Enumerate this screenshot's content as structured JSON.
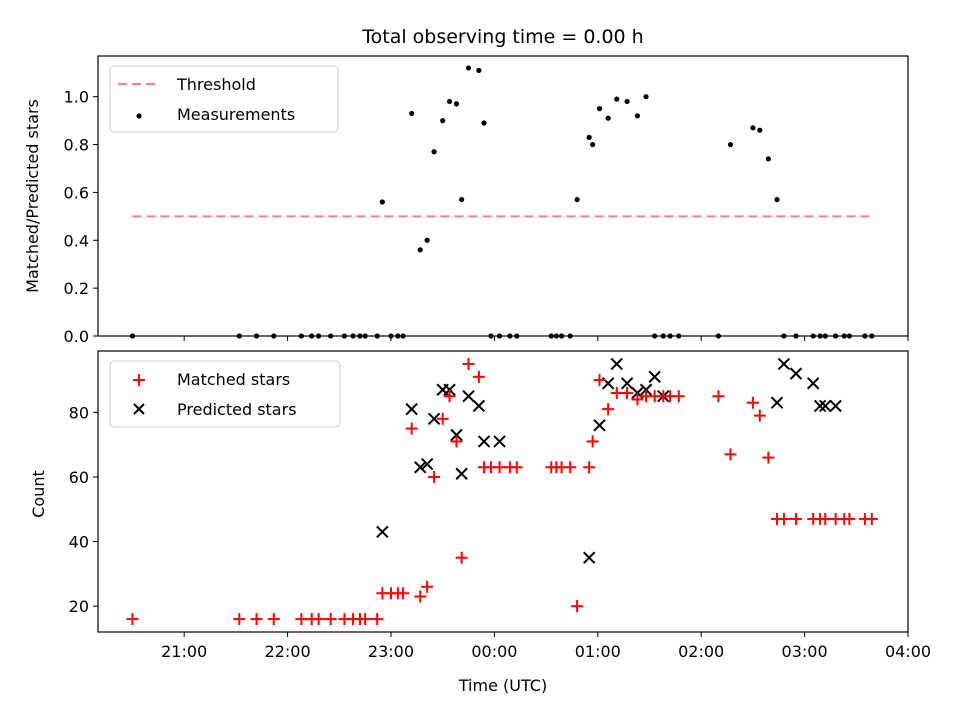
{
  "chart_data": [
    {
      "type": "scatter",
      "title": "Total observing time = 0.00 h",
      "ylabel": "Matched/Predicted stars",
      "xlabel": "",
      "xlim": [
        "20:10",
        "04:00"
      ],
      "ylim": [
        0,
        1.17
      ],
      "yticks": [
        "0.0",
        "0.2",
        "0.4",
        "0.6",
        "0.8",
        "1.0"
      ],
      "legend": {
        "position": "top-left",
        "entries": [
          "Threshold",
          "Measurements"
        ]
      },
      "threshold": {
        "name": "Threshold",
        "y": 0.5,
        "x_start": "20:30",
        "x_end": "03:39",
        "color": "#ff7f7f"
      },
      "series": [
        {
          "name": "Measurements",
          "color": "#000000",
          "x": [
            "20:30",
            "21:32",
            "21:42",
            "21:52",
            "22:08",
            "22:14",
            "22:18",
            "22:25",
            "22:33",
            "22:38",
            "22:42",
            "22:45",
            "22:52",
            "22:55",
            "23:00",
            "23:04",
            "23:07",
            "23:12",
            "23:17",
            "23:21",
            "23:25",
            "23:30",
            "23:34",
            "23:38",
            "23:41",
            "23:45",
            "23:51",
            "23:54",
            "23:58",
            "00:03",
            "00:09",
            "00:13",
            "00:33",
            "00:36",
            "00:39",
            "00:44",
            "00:48",
            "00:55",
            "00:57",
            "01:01",
            "01:06",
            "01:11",
            "01:17",
            "01:23",
            "01:28",
            "01:33",
            "01:38",
            "01:42",
            "01:47",
            "02:10",
            "02:17",
            "02:30",
            "02:34",
            "02:39",
            "02:44",
            "02:48",
            "02:55",
            "03:05",
            "03:09",
            "03:12",
            "03:18",
            "03:23",
            "03:26",
            "03:35",
            "03:39"
          ],
          "y": [
            0,
            0,
            0,
            0,
            0,
            0,
            0,
            0,
            0,
            0,
            0,
            0,
            0,
            0.56,
            0,
            0,
            0,
            0.93,
            0.36,
            0.4,
            0.77,
            0.9,
            0.98,
            0.97,
            0.57,
            1.12,
            1.11,
            0.89,
            0,
            0,
            0,
            0,
            0,
            0,
            0,
            0,
            0.57,
            0.83,
            0.8,
            0.95,
            0.91,
            0.99,
            0.98,
            0.92,
            1.0,
            0,
            0,
            0,
            0,
            0,
            0.8,
            0.87,
            0.86,
            0.74,
            0.57,
            0,
            0,
            0,
            0,
            0,
            0,
            0,
            0,
            0,
            0
          ]
        }
      ]
    },
    {
      "type": "scatter",
      "title": "",
      "ylabel": "Count",
      "xlabel": "Time (UTC)",
      "xlim": [
        "20:10",
        "04:00"
      ],
      "ylim": [
        12,
        99
      ],
      "yticks": [
        "20",
        "40",
        "60",
        "80"
      ],
      "xticks": [
        "21:00",
        "22:00",
        "23:00",
        "00:00",
        "01:00",
        "02:00",
        "03:00",
        "04:00"
      ],
      "legend": {
        "position": "top-left",
        "entries": [
          "Matched stars",
          "Predicted stars"
        ]
      },
      "series": [
        {
          "name": "Matched stars",
          "color": "#ff0000",
          "marker": "plus",
          "x": [
            "20:30",
            "21:32",
            "21:42",
            "21:52",
            "22:08",
            "22:14",
            "22:18",
            "22:25",
            "22:33",
            "22:38",
            "22:42",
            "22:45",
            "22:52",
            "22:55",
            "23:00",
            "23:04",
            "23:07",
            "23:12",
            "23:17",
            "23:21",
            "23:25",
            "23:30",
            "23:34",
            "23:38",
            "23:41",
            "23:45",
            "23:51",
            "23:54",
            "23:58",
            "00:03",
            "00:09",
            "00:13",
            "00:33",
            "00:36",
            "00:39",
            "00:44",
            "00:48",
            "00:55",
            "00:57",
            "01:01",
            "01:06",
            "01:11",
            "01:17",
            "01:23",
            "01:28",
            "01:33",
            "01:38",
            "01:42",
            "01:47",
            "02:10",
            "02:17",
            "02:30",
            "02:34",
            "02:39",
            "02:44",
            "02:48",
            "02:55",
            "03:05",
            "03:09",
            "03:12",
            "03:18",
            "03:23",
            "03:26",
            "03:35",
            "03:39"
          ],
          "y": [
            16,
            16,
            16,
            16,
            16,
            16,
            16,
            16,
            16,
            16,
            16,
            16,
            16,
            24,
            24,
            24,
            24,
            75,
            23,
            26,
            60,
            78,
            85,
            71,
            35,
            95,
            91,
            63,
            63,
            63,
            63,
            63,
            63,
            63,
            63,
            63,
            20,
            63,
            71,
            90,
            81,
            86,
            86,
            84,
            85,
            85,
            85,
            85,
            85,
            85,
            67,
            83,
            79,
            66,
            47,
            47,
            47,
            47,
            47,
            47,
            47,
            47,
            47,
            47,
            47
          ]
        },
        {
          "name": "Predicted stars",
          "color": "#000000",
          "marker": "x",
          "x": [
            "22:55",
            "23:12",
            "23:17",
            "23:21",
            "23:25",
            "23:30",
            "23:34",
            "23:38",
            "23:41",
            "23:45",
            "23:51",
            "23:54",
            "00:03",
            "00:55",
            "01:01",
            "01:06",
            "01:11",
            "01:17",
            "01:23",
            "01:28",
            "01:33",
            "01:38",
            "02:44",
            "02:48",
            "02:55",
            "03:05",
            "03:09",
            "03:12",
            "03:18"
          ],
          "y": [
            43,
            81,
            63,
            64,
            78,
            87,
            87,
            73,
            61,
            85,
            82,
            71,
            71,
            35,
            76,
            89,
            95,
            89,
            86,
            87,
            91,
            85,
            83,
            95,
            92,
            89,
            82,
            82,
            82
          ]
        }
      ]
    }
  ]
}
